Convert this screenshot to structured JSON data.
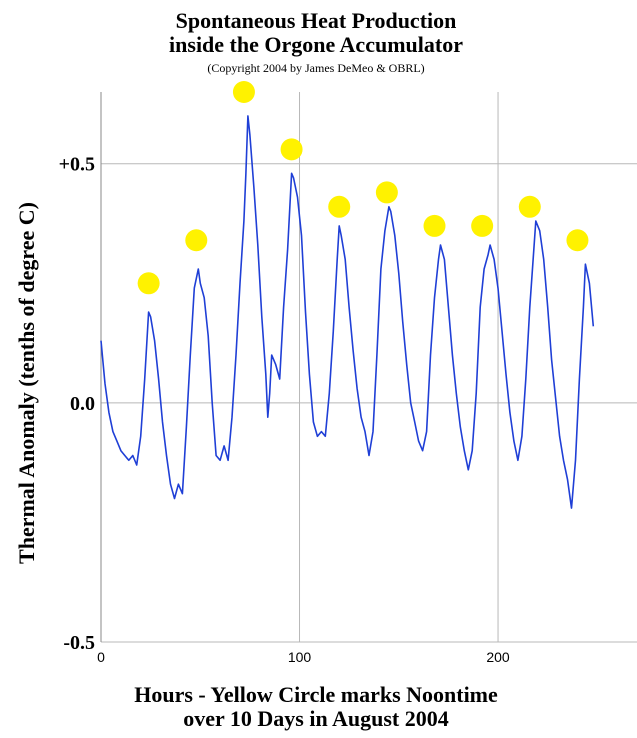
{
  "chart_data": {
    "type": "line",
    "title": "Spontaneous Heat Production",
    "title_line2": "inside the Orgone Accumulator",
    "subtitle": "(Copyright 2004 by James DeMeo & OBRL)",
    "xlabel": "Hours - Yellow Circle marks Noontime",
    "xlabel_line2": "over 10 Days in August 2004",
    "ylabel": "Thermal Anomaly (tenths of degree C)",
    "xlim": [
      0,
      270
    ],
    "ylim": [
      -0.5,
      0.65
    ],
    "x_ticks": [
      0,
      100,
      200
    ],
    "x_tick_labels": [
      "0",
      "100",
      "200"
    ],
    "y_ticks": [
      0.5,
      0.0,
      -0.5
    ],
    "y_tick_labels": [
      "+0.5",
      "0.0",
      "-0.5"
    ],
    "grid": true,
    "colors": {
      "line": "#1f3fd6",
      "marker": "#fff200",
      "grid": "#b8b8b8"
    },
    "series": [
      {
        "x": [
          0,
          2,
          4,
          6,
          8,
          10,
          12,
          14,
          16,
          18,
          20,
          22,
          24,
          25,
          27,
          29,
          31,
          33,
          35,
          37,
          39,
          41,
          43,
          45,
          47,
          49,
          50,
          52,
          54,
          56,
          58,
          60,
          62,
          64,
          66,
          68,
          70,
          72,
          73,
          74,
          75,
          77,
          79,
          81,
          83,
          84,
          85,
          86,
          88,
          90,
          92,
          94,
          96,
          97,
          99,
          101,
          103,
          105,
          107,
          109,
          111,
          113,
          115,
          117,
          119,
          120,
          121,
          123,
          125,
          127,
          129,
          131,
          133,
          135,
          137,
          139,
          141,
          143,
          145,
          146,
          148,
          150,
          152,
          154,
          156,
          158,
          160,
          162,
          164,
          166,
          168,
          170,
          171,
          173,
          175,
          177,
          179,
          181,
          183,
          185,
          187,
          189,
          191,
          193,
          195,
          196,
          198,
          200,
          202,
          204,
          206,
          208,
          210,
          212,
          214,
          216,
          218,
          219,
          221,
          223,
          225,
          227,
          229,
          231,
          233,
          235,
          237,
          239,
          241,
          243,
          244,
          246,
          248
        ],
        "y": [
          0.13,
          0.04,
          -0.02,
          -0.06,
          -0.08,
          -0.1,
          -0.11,
          -0.12,
          -0.11,
          -0.13,
          -0.07,
          0.05,
          0.19,
          0.18,
          0.13,
          0.05,
          -0.04,
          -0.11,
          -0.17,
          -0.2,
          -0.17,
          -0.19,
          -0.05,
          0.1,
          0.24,
          0.28,
          0.25,
          0.22,
          0.14,
          0.0,
          -0.11,
          -0.12,
          -0.09,
          -0.12,
          -0.03,
          0.1,
          0.25,
          0.38,
          0.48,
          0.6,
          0.56,
          0.45,
          0.33,
          0.18,
          0.06,
          -0.03,
          0.02,
          0.1,
          0.08,
          0.05,
          0.2,
          0.32,
          0.48,
          0.47,
          0.43,
          0.35,
          0.19,
          0.06,
          -0.04,
          -0.07,
          -0.06,
          -0.07,
          0.02,
          0.15,
          0.3,
          0.37,
          0.35,
          0.3,
          0.2,
          0.11,
          0.03,
          -0.03,
          -0.06,
          -0.11,
          -0.06,
          0.1,
          0.28,
          0.36,
          0.41,
          0.4,
          0.35,
          0.27,
          0.17,
          0.08,
          0.0,
          -0.04,
          -0.08,
          -0.1,
          -0.06,
          0.1,
          0.22,
          0.3,
          0.33,
          0.3,
          0.2,
          0.1,
          0.02,
          -0.05,
          -0.1,
          -0.14,
          -0.1,
          0.02,
          0.2,
          0.28,
          0.31,
          0.33,
          0.3,
          0.24,
          0.15,
          0.06,
          -0.02,
          -0.08,
          -0.12,
          -0.07,
          0.05,
          0.2,
          0.32,
          0.38,
          0.36,
          0.3,
          0.2,
          0.09,
          0.01,
          -0.07,
          -0.12,
          -0.16,
          -0.22,
          -0.12,
          0.05,
          0.2,
          0.29,
          0.25,
          0.16
        ]
      }
    ],
    "noon_markers": [
      {
        "x": 24,
        "y": 0.25
      },
      {
        "x": 48,
        "y": 0.34
      },
      {
        "x": 72,
        "y": 0.65
      },
      {
        "x": 96,
        "y": 0.53
      },
      {
        "x": 120,
        "y": 0.41
      },
      {
        "x": 144,
        "y": 0.44
      },
      {
        "x": 168,
        "y": 0.37
      },
      {
        "x": 192,
        "y": 0.37
      },
      {
        "x": 216,
        "y": 0.41
      },
      {
        "x": 240,
        "y": 0.34
      }
    ]
  }
}
